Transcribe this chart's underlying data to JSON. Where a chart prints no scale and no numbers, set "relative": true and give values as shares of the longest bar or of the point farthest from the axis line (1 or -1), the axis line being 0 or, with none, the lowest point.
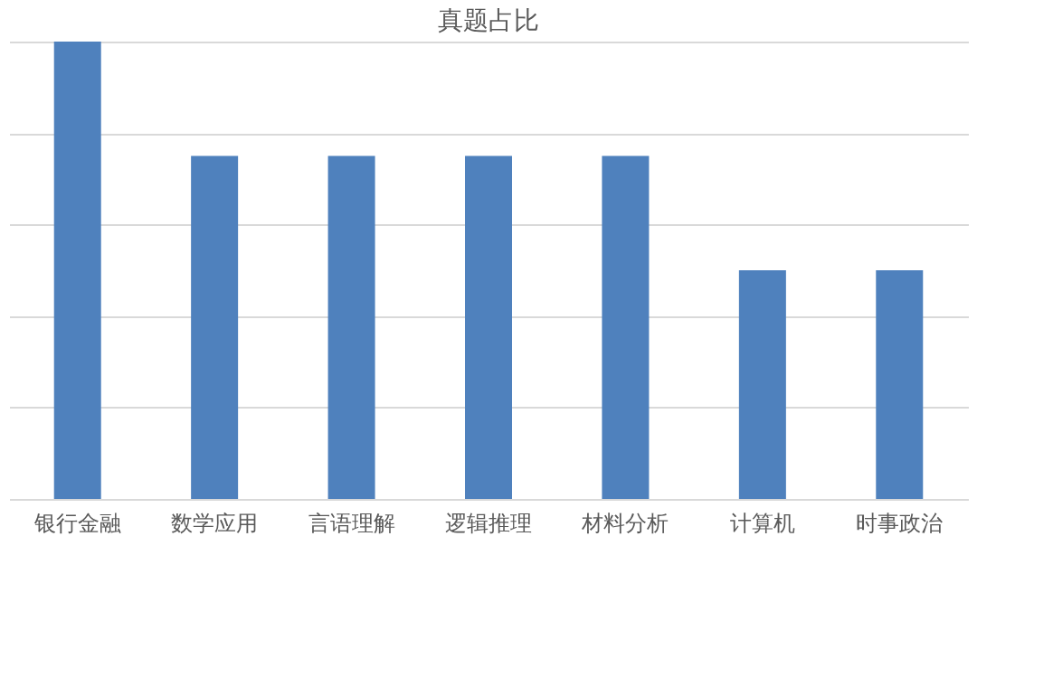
{
  "chart_data": {
    "type": "bar",
    "title": "真题占比",
    "categories": [
      "银行金融",
      "数学应用",
      "言语理解",
      "逻辑推理",
      "材料分析",
      "计算机",
      "时事政治"
    ],
    "values": [
      1,
      0.75,
      0.75,
      0.75,
      0.75,
      0.5,
      0.5
    ],
    "color": "#4f81bd",
    "relative": true,
    "grid": "y"
  }
}
